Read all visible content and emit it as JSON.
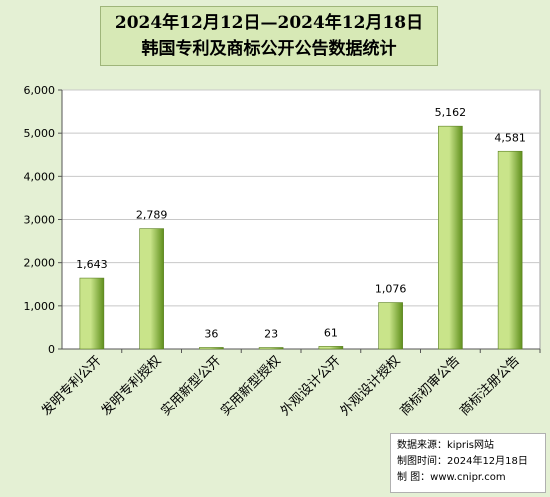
{
  "title": {
    "line1": "2024年12月12日—2024年12月18日",
    "line2": "韩国专利及商标公开公告数据统计"
  },
  "source": {
    "line1": "数据来源：kipris网站",
    "line2": "制图时间：2024年12月18日",
    "line3": "制    图：www.cnipr.com"
  },
  "colors": {
    "bar_light": "#c9e48a",
    "bar_dark": "#5f8f1c",
    "plot_bg": "#ffffff",
    "grid": "#c8c8c8",
    "page_bg": "#e4f0d4"
  },
  "chart_data": {
    "type": "bar",
    "categories": [
      "发明专利公开",
      "发明专利授权",
      "实用新型公开",
      "实用新型授权",
      "外观设计公开",
      "外观设计授权",
      "商标初审公告",
      "商标注册公告"
    ],
    "values": [
      1643,
      2789,
      36,
      23,
      61,
      1076,
      5162,
      4581
    ],
    "data_labels": [
      "1,643",
      "2,789",
      "36",
      "23",
      "61",
      "1,076",
      "5,162",
      "4,581"
    ],
    "y_ticks": [
      0,
      1000,
      2000,
      3000,
      4000,
      5000,
      6000
    ],
    "y_tick_labels": [
      "0",
      "1,000",
      "2,000",
      "3,000",
      "4,000",
      "5,000",
      "6,000"
    ],
    "ylim": [
      0,
      6000
    ],
    "grid": true,
    "legend": "none"
  }
}
